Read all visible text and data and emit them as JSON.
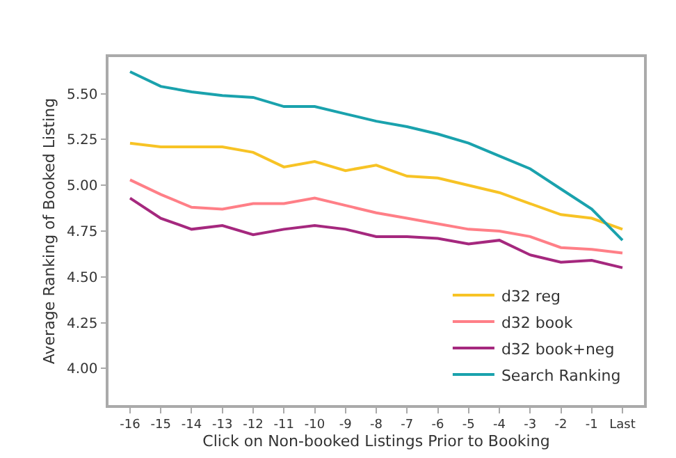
{
  "chart_data": {
    "type": "line",
    "xlabel": "Click on Non-booked Listings Prior to Booking",
    "ylabel": "Average Ranking of Booked Listing",
    "categories": [
      "-16",
      "-15",
      "-14",
      "-13",
      "-12",
      "-11",
      "-10",
      "-9",
      "-8",
      "-7",
      "-6",
      "-5",
      "-4",
      "-3",
      "-2",
      "-1",
      "Last"
    ],
    "ylim": [
      3.8,
      5.7
    ],
    "yticks": [
      {
        "value": 4,
        "label": "4.00"
      },
      {
        "value": 4.25,
        "label": "4.25"
      },
      {
        "value": 4.5,
        "label": "4.50"
      },
      {
        "value": 4.75,
        "label": "4.75"
      },
      {
        "value": 5,
        "label": "5.00"
      },
      {
        "value": 5.25,
        "label": "5.25"
      },
      {
        "value": 5.5,
        "label": "5.50"
      }
    ],
    "grid": false,
    "legend": "bottom right",
    "marker": "none",
    "line_style": "solid",
    "series": [
      {
        "name": "d32 reg",
        "color": "#f7c325",
        "values": [
          5.23,
          5.21,
          5.21,
          5.21,
          5.18,
          5.1,
          5.13,
          5.08,
          5.11,
          5.05,
          5.04,
          5.0,
          4.96,
          4.9,
          4.84,
          4.82,
          4.76
        ]
      },
      {
        "name": "d32 book",
        "color": "#ff7f87",
        "values": [
          5.03,
          4.95,
          4.88,
          4.87,
          4.9,
          4.9,
          4.93,
          4.89,
          4.85,
          4.82,
          4.79,
          4.76,
          4.75,
          4.72,
          4.66,
          4.65,
          4.63
        ]
      },
      {
        "name": "d32 book+neg",
        "color": "#a5287e",
        "values": [
          4.93,
          4.82,
          4.76,
          4.78,
          4.73,
          4.76,
          4.78,
          4.76,
          4.72,
          4.72,
          4.71,
          4.68,
          4.7,
          4.62,
          4.58,
          4.59,
          4.55
        ]
      },
      {
        "name": "Search Ranking",
        "color": "#1aa2ad",
        "values": [
          5.62,
          5.54,
          5.51,
          5.49,
          5.48,
          5.43,
          5.43,
          5.39,
          5.35,
          5.32,
          5.28,
          5.23,
          5.16,
          5.09,
          4.98,
          4.87,
          4.7
        ]
      }
    ]
  }
}
